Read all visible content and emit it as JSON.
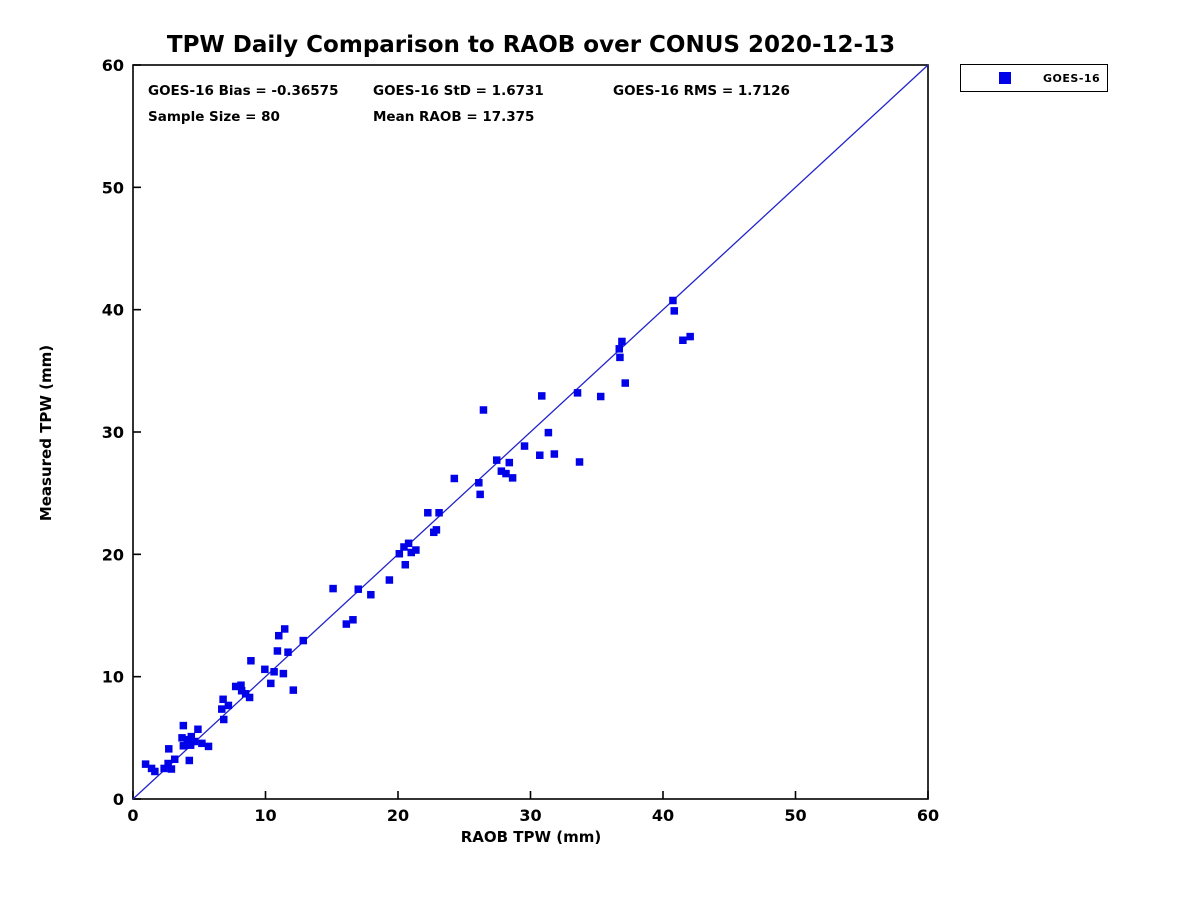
{
  "chart_data": {
    "type": "scatter",
    "title": "TPW Daily Comparison to RAOB over CONUS 2020-12-13",
    "xlabel": "RAOB TPW (mm)",
    "ylabel": "Measured TPW (mm)",
    "xlim": [
      0,
      60
    ],
    "ylim": [
      0,
      60
    ],
    "x_ticks": [
      0,
      10,
      20,
      30,
      40,
      50,
      60
    ],
    "y_ticks": [
      0,
      10,
      20,
      30,
      40,
      50,
      60
    ],
    "grid": false,
    "colors": {
      "marker": "#0202E8",
      "identity_line": "#2222CC",
      "axis": "#000000"
    },
    "stats_text": {
      "bias": "GOES-16 Bias = -0.36575",
      "std": "GOES-16 StD = 1.6731",
      "rms": "GOES-16 RMS = 1.7126",
      "sample": "Sample Size = 80",
      "mean_raob": "Mean RAOB = 17.375"
    },
    "legend": {
      "position": "outside-top-right",
      "entries": [
        {
          "label": "GOES-16",
          "marker": "square",
          "color": "#0202E8"
        }
      ]
    },
    "identity_line": {
      "from": [
        0,
        0
      ],
      "to": [
        60,
        60
      ]
    },
    "series": [
      {
        "name": "GOES-16",
        "marker": "square",
        "color": "#0202E8",
        "points": [
          [
            0.95,
            2.85
          ],
          [
            1.4,
            2.5
          ],
          [
            1.65,
            2.25
          ],
          [
            2.35,
            2.5
          ],
          [
            2.65,
            2.9
          ],
          [
            2.9,
            2.45
          ],
          [
            3.15,
            3.25
          ],
          [
            2.7,
            4.1
          ],
          [
            4.25,
            3.15
          ],
          [
            3.8,
            4.35
          ],
          [
            3.7,
            5.0
          ],
          [
            3.8,
            6.0
          ],
          [
            4.1,
            4.85
          ],
          [
            4.35,
            4.4
          ],
          [
            4.4,
            5.1
          ],
          [
            4.65,
            4.7
          ],
          [
            4.9,
            5.7
          ],
          [
            5.2,
            4.55
          ],
          [
            5.7,
            4.3
          ],
          [
            6.85,
            6.5
          ],
          [
            6.7,
            7.35
          ],
          [
            6.8,
            8.15
          ],
          [
            7.2,
            7.65
          ],
          [
            7.75,
            9.2
          ],
          [
            8.15,
            9.3
          ],
          [
            8.2,
            8.85
          ],
          [
            8.5,
            8.6
          ],
          [
            8.8,
            8.3
          ],
          [
            10.4,
            9.45
          ],
          [
            12.1,
            8.9
          ],
          [
            8.9,
            11.3
          ],
          [
            9.95,
            10.6
          ],
          [
            10.65,
            10.4
          ],
          [
            11.35,
            10.25
          ],
          [
            10.9,
            12.1
          ],
          [
            11.7,
            12.0
          ],
          [
            11.0,
            13.35
          ],
          [
            11.45,
            13.9
          ],
          [
            12.85,
            12.95
          ],
          [
            15.1,
            17.2
          ],
          [
            16.1,
            14.3
          ],
          [
            16.6,
            14.65
          ],
          [
            17.0,
            17.15
          ],
          [
            17.95,
            16.7
          ],
          [
            19.35,
            17.9
          ],
          [
            20.1,
            20.05
          ],
          [
            20.45,
            20.6
          ],
          [
            20.8,
            20.9
          ],
          [
            21.0,
            20.15
          ],
          [
            21.35,
            20.35
          ],
          [
            20.55,
            19.15
          ],
          [
            22.7,
            21.8
          ],
          [
            22.25,
            23.4
          ],
          [
            23.1,
            23.4
          ],
          [
            22.9,
            22.0
          ],
          [
            24.25,
            26.2
          ],
          [
            26.1,
            25.85
          ],
          [
            26.2,
            24.9
          ],
          [
            26.45,
            31.8
          ],
          [
            27.45,
            27.7
          ],
          [
            27.8,
            26.8
          ],
          [
            28.15,
            26.6
          ],
          [
            28.65,
            26.25
          ],
          [
            28.4,
            27.5
          ],
          [
            29.55,
            28.85
          ],
          [
            30.7,
            28.1
          ],
          [
            30.85,
            32.95
          ],
          [
            31.35,
            29.95
          ],
          [
            31.8,
            28.2
          ],
          [
            33.55,
            33.2
          ],
          [
            33.7,
            27.55
          ],
          [
            35.3,
            32.9
          ],
          [
            36.9,
            37.4
          ],
          [
            36.7,
            36.8
          ],
          [
            36.75,
            36.1
          ],
          [
            37.15,
            34.0
          ],
          [
            40.75,
            40.75
          ],
          [
            40.85,
            39.9
          ],
          [
            41.5,
            37.5
          ],
          [
            42.05,
            37.8
          ]
        ]
      }
    ]
  }
}
